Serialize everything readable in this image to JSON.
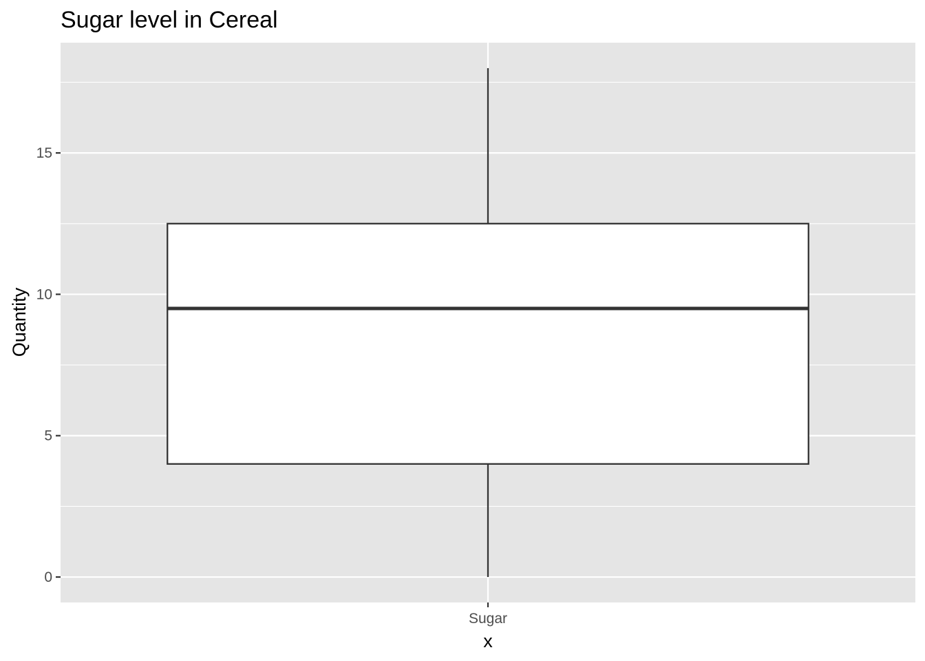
{
  "chart_data": {
    "type": "boxplot",
    "title": "Sugar level in Cereal",
    "xlabel": "x",
    "ylabel": "Quantity",
    "categories": [
      "Sugar"
    ],
    "boxes": [
      {
        "category": "Sugar",
        "min": 0,
        "q1": 4,
        "median": 9.5,
        "q3": 12.5,
        "max": 18
      }
    ],
    "ylim": [
      -0.9,
      18.9
    ],
    "yticks": [
      0,
      5,
      10,
      15
    ],
    "ytick_labels": [
      "0",
      "5",
      "10",
      "15"
    ],
    "grid": true,
    "panel_background": "#e5e5e5",
    "grid_color": "#ffffff",
    "box_fill": "#ffffff",
    "box_stroke": "#333333"
  }
}
